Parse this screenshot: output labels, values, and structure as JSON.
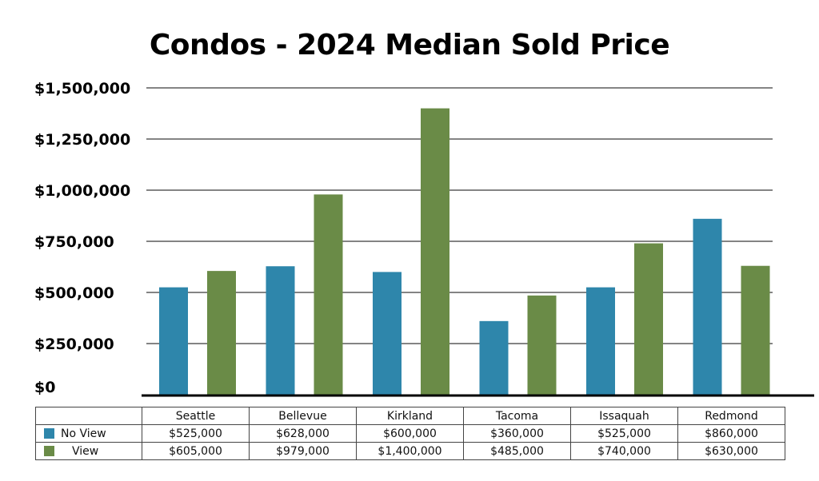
{
  "chart_data": {
    "type": "bar",
    "title": "Condos - 2024 Median Sold Price",
    "xlabel": "",
    "ylabel": "",
    "categories": [
      "Seattle",
      "Bellevue",
      "Kirkland",
      "Tacoma",
      "Issaquah",
      "Redmond"
    ],
    "series": [
      {
        "name": "No View",
        "color": "#2e86ab",
        "values": [
          525000,
          628000,
          600000,
          360000,
          525000,
          860000
        ],
        "labels": [
          "$525,000",
          "$628,000",
          "$600,000",
          "$360,000",
          "$525,000",
          "$860,000"
        ]
      },
      {
        "name": "View",
        "color": "#6a8b47",
        "values": [
          605000,
          979000,
          1400000,
          485000,
          740000,
          630000
        ],
        "labels": [
          "$605,000",
          "$979,000",
          "$1,400,000",
          "$485,000",
          "$740,000",
          "$630,000"
        ]
      }
    ],
    "ylim": [
      0,
      1500000
    ],
    "yticks": [
      0,
      250000,
      500000,
      750000,
      1000000,
      1250000,
      1500000
    ],
    "ytick_labels": [
      "$0",
      "$250,000",
      "$500,000",
      "$750,000",
      "$1,000,000",
      "$1,250,000",
      "$1,500,000"
    ],
    "grid": true,
    "legend": "bottom (data table)"
  }
}
